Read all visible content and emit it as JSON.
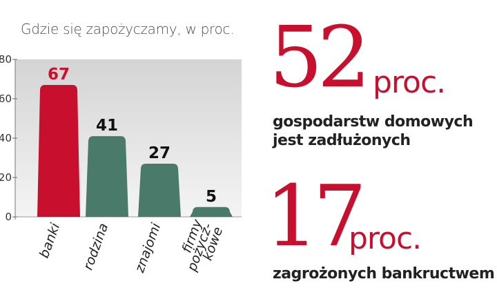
{
  "chart_data": {
    "type": "bar",
    "title": "Gdzie się zapożyczamy, w proc.",
    "categories": [
      "banki",
      "rodzina",
      "znajomi",
      "firmy pożycz-kowe"
    ],
    "category_lines": [
      [
        "banki"
      ],
      [
        "rodzina"
      ],
      [
        "znajomi"
      ],
      [
        "firmy",
        "pożycz-",
        "kowe"
      ]
    ],
    "values": [
      67,
      41,
      27,
      5
    ],
    "value_labels": [
      "67",
      "41",
      "27",
      "5"
    ],
    "yticks": [
      "0",
      "20",
      "40",
      "60",
      "80"
    ],
    "ylim": [
      0,
      80
    ],
    "grid": false,
    "colors": {
      "highlight_bar": "#c8102e",
      "highlight_label": "#c8102e",
      "bar": "#4a7a6a",
      "label": "#111111",
      "background_top": "#d4d4d4",
      "background_bottom": "#f4f4f4"
    }
  },
  "stats": [
    {
      "number": "52",
      "unit": "proc.",
      "lines": [
        "gospodarstw domowych",
        "jest zadłużonych"
      ]
    },
    {
      "number": "17",
      "unit": "proc.",
      "lines": [
        "zagrożonych bankructwem"
      ]
    }
  ]
}
